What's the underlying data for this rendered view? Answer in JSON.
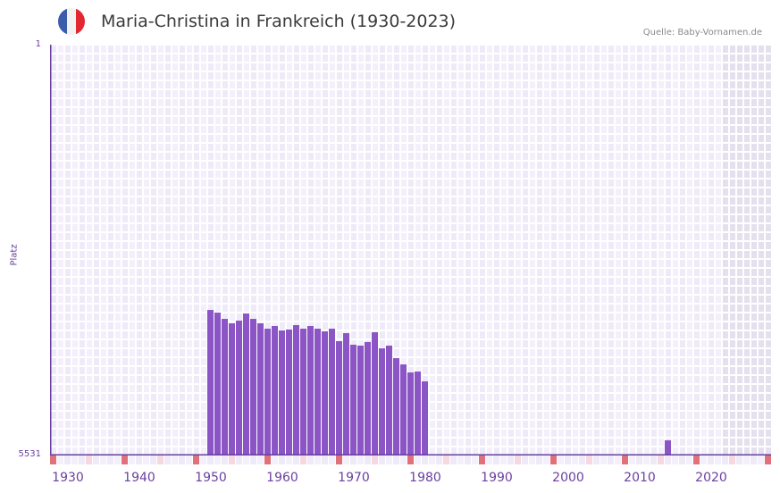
{
  "header": {
    "title": "Maria-Christina in Frankreich (1930-2023)",
    "source": "Quelle: Baby-Vornamen.de",
    "flag_colors": [
      "#3a5cab",
      "#f2f2f2",
      "#e3262f"
    ]
  },
  "colors": {
    "bar": "#8b55c6",
    "axis": "#6a3fa0",
    "grid_cell_a": "#efeaf8",
    "grid_cell_b": "#f3f0fb",
    "grid_line": "#ffffff",
    "future_shade": "#e4e0ee",
    "decade_marker": "#e0707a",
    "midpoint_marker": "#f5d8e0"
  },
  "axis": {
    "y_top_label": "1",
    "y_bottom_label": "5531",
    "y_title": "Platz"
  },
  "chart_data": {
    "type": "bar",
    "title": "Maria-Christina in Frankreich (1930-2023)",
    "xlabel": "",
    "ylabel": "Platz",
    "ylim": [
      5531,
      1
    ],
    "y_inverted": true,
    "grid": true,
    "x_tick_labels": [
      "1930",
      "1940",
      "1950",
      "1960",
      "1970",
      "1980",
      "1990",
      "2000",
      "2010",
      "2020"
    ],
    "x_range": [
      1928,
      2028
    ],
    "future_shaded_from": 2022,
    "categories": [
      1950,
      1951,
      1952,
      1953,
      1954,
      1955,
      1956,
      1957,
      1958,
      1959,
      1960,
      1961,
      1962,
      1963,
      1964,
      1965,
      1966,
      1967,
      1968,
      1969,
      1970,
      1971,
      1972,
      1973,
      1974,
      1975,
      1976,
      1977,
      1978,
      1979,
      1980,
      2014
    ],
    "values": [
      3572,
      3608,
      3692,
      3752,
      3716,
      3620,
      3692,
      3752,
      3824,
      3788,
      3848,
      3836,
      3776,
      3824,
      3788,
      3824,
      3860,
      3824,
      3992,
      3884,
      4040,
      4052,
      4004,
      3872,
      4088,
      4052,
      4220,
      4305,
      4413,
      4401,
      4533,
      5327
    ],
    "series": [
      {
        "name": "Platz",
        "values": [
          3572,
          3608,
          3692,
          3752,
          3716,
          3620,
          3692,
          3752,
          3824,
          3788,
          3848,
          3836,
          3776,
          3824,
          3788,
          3824,
          3860,
          3824,
          3992,
          3884,
          4040,
          4052,
          4004,
          3872,
          4088,
          4052,
          4220,
          4305,
          4413,
          4401,
          4533,
          5327
        ]
      }
    ]
  }
}
